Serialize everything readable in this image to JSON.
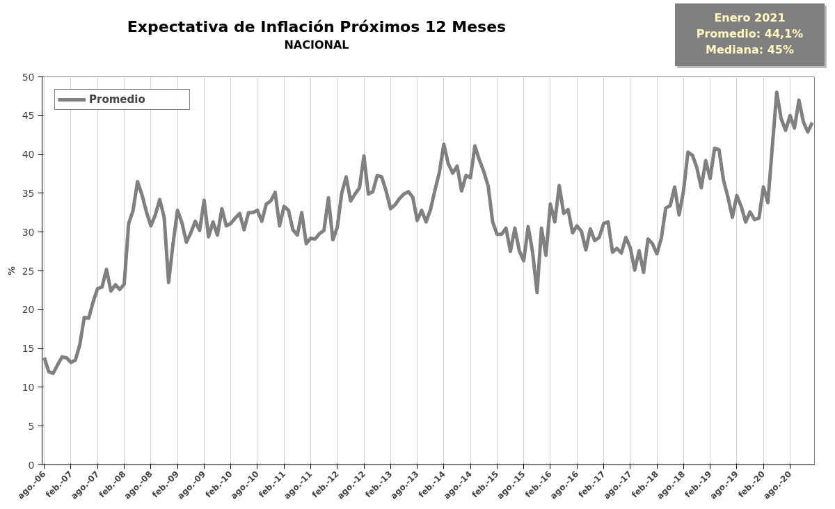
{
  "chart_data": {
    "type": "line",
    "title": "Expectativa de Inflación Próximos 12 Meses",
    "subtitle": "NACIONAL",
    "ylabel": "%",
    "categories": [
      "ago.-06",
      null,
      null,
      null,
      null,
      null,
      "feb.-07",
      null,
      null,
      null,
      null,
      null,
      "ago.-07",
      null,
      null,
      null,
      null,
      null,
      "feb.-08",
      null,
      null,
      null,
      null,
      null,
      "ago.-08",
      null,
      null,
      null,
      null,
      null,
      "feb.-09",
      null,
      null,
      null,
      null,
      null,
      "ago.-09",
      null,
      null,
      null,
      null,
      null,
      "feb.-10",
      null,
      null,
      null,
      null,
      null,
      "ago.-10",
      null,
      null,
      null,
      null,
      null,
      "feb.-11",
      null,
      null,
      null,
      null,
      null,
      "ago.-11",
      null,
      null,
      null,
      null,
      null,
      "feb.-12",
      null,
      null,
      null,
      null,
      null,
      "ago.-12",
      null,
      null,
      null,
      null,
      null,
      "feb.-13",
      null,
      null,
      null,
      null,
      null,
      "ago.-13",
      null,
      null,
      null,
      null,
      null,
      "feb.-14",
      null,
      null,
      null,
      null,
      null,
      "ago.-14",
      null,
      null,
      null,
      null,
      null,
      "feb.-15",
      null,
      null,
      null,
      null,
      null,
      "ago.-15",
      null,
      null,
      null,
      null,
      null,
      "feb.-16",
      null,
      null,
      null,
      null,
      null,
      "ago.-16",
      null,
      null,
      null,
      null,
      null,
      "feb.-17",
      null,
      null,
      null,
      null,
      null,
      "ago.-17",
      null,
      null,
      null,
      null,
      null,
      "feb.-18",
      null,
      null,
      null,
      null,
      null,
      "ago.-18",
      null,
      null,
      null,
      null,
      null,
      "feb.-19",
      null,
      null,
      null,
      null,
      null,
      "ago.-19",
      null,
      null,
      null,
      null,
      null,
      "feb.-20",
      null,
      null,
      null,
      null,
      null,
      "ago.-20",
      null,
      null,
      null,
      null,
      null
    ],
    "series": [
      {
        "name": "Promedio",
        "color": "#808080",
        "values": [
          13.8,
          12.0,
          11.8,
          12.9,
          13.9,
          13.8,
          13.2,
          13.5,
          15.5,
          19.0,
          18.9,
          21.0,
          22.7,
          22.9,
          25.2,
          22.4,
          23.2,
          22.6,
          23.3,
          31.1,
          32.8,
          36.5,
          34.8,
          32.6,
          30.8,
          32.2,
          34.2,
          31.9,
          23.5,
          28.5,
          32.8,
          31.2,
          28.7,
          29.9,
          31.4,
          30.2,
          34.1,
          29.4,
          31.3,
          29.6,
          33.0,
          30.8,
          31.1,
          31.8,
          32.4,
          30.3,
          32.5,
          32.5,
          32.8,
          31.4,
          33.6,
          34.0,
          35.1,
          30.8,
          33.3,
          32.8,
          30.3,
          29.6,
          32.5,
          28.5,
          29.2,
          29.1,
          29.8,
          30.2,
          34.4,
          29.0,
          30.6,
          35.0,
          37.1,
          34.0,
          34.9,
          35.7,
          39.8,
          34.9,
          35.2,
          37.3,
          37.1,
          35.3,
          33.0,
          33.5,
          34.3,
          34.9,
          35.2,
          34.5,
          31.5,
          32.8,
          31.3,
          32.9,
          35.4,
          37.7,
          41.3,
          38.8,
          37.6,
          38.5,
          35.3,
          37.3,
          37.0,
          41.1,
          39.3,
          37.8,
          35.9,
          31.3,
          29.7,
          29.7,
          30.5,
          27.5,
          30.5,
          27.6,
          26.3,
          30.7,
          27.4,
          22.2,
          30.5,
          27.0,
          33.6,
          31.3,
          36.0,
          32.4,
          32.9,
          29.9,
          30.8,
          30.1,
          27.7,
          30.4,
          28.9,
          29.3,
          31.1,
          31.3,
          27.4,
          27.9,
          27.3,
          29.3,
          28.0,
          25.1,
          27.6,
          24.8,
          29.1,
          28.5,
          27.2,
          29.2,
          33.1,
          33.4,
          35.8,
          32.2,
          35.3,
          40.3,
          39.9,
          38.3,
          35.7,
          39.2,
          36.9,
          40.8,
          40.6,
          36.7,
          34.5,
          31.9,
          34.7,
          33.3,
          31.3,
          32.6,
          31.6,
          31.8,
          35.8,
          33.8,
          41.0,
          48.0,
          44.6,
          43.1,
          45.0,
          43.4,
          47.0,
          44.2,
          42.9,
          44.1
        ]
      }
    ],
    "ylim": [
      0,
      50
    ],
    "yticks": [
      0,
      5,
      10,
      15,
      20,
      25,
      30,
      35,
      40,
      45,
      50
    ],
    "grid": "x",
    "legend": "top left",
    "marker": "none",
    "line_style": "solid",
    "annotations": [
      "Enero 2021",
      "Promedio: 44,1%",
      "Mediana: 45%"
    ]
  }
}
